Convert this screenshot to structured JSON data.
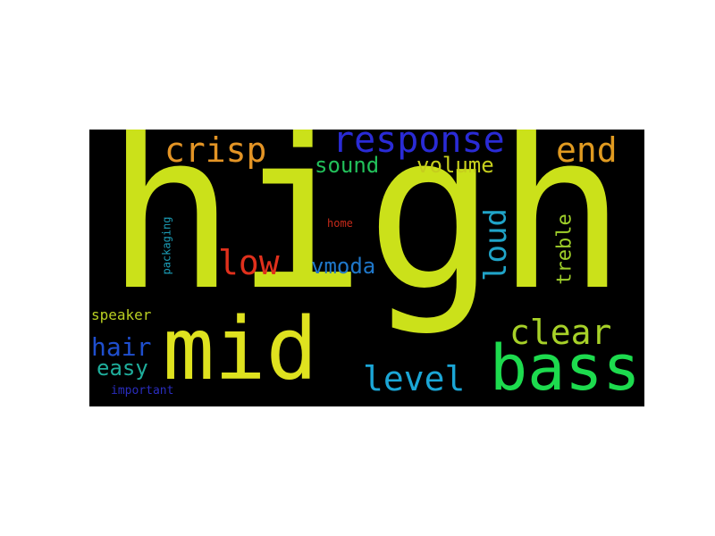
{
  "words": {
    "high": {
      "text": "high",
      "color": "#cbe11a"
    },
    "mid": {
      "text": "mid",
      "color": "#dfe21f"
    },
    "bass": {
      "text": "bass",
      "color": "#1ddb4e"
    },
    "response": {
      "text": "response",
      "color": "#2a2bd6"
    },
    "crisp": {
      "text": "crisp",
      "color": "#e39425"
    },
    "end": {
      "text": "end",
      "color": "#e09a20"
    },
    "sound": {
      "text": "sound",
      "color": "#22c05a"
    },
    "volume": {
      "text": "volume",
      "color": "#c6ce1d"
    },
    "low": {
      "text": "low",
      "color": "#e0301c"
    },
    "vmoda": {
      "text": "vmoda",
      "color": "#1f77c9"
    },
    "loud": {
      "text": "loud",
      "color": "#20a4c8"
    },
    "treble": {
      "text": "treble",
      "color": "#9fcf2a"
    },
    "clear": {
      "text": "clear",
      "color": "#a7d128"
    },
    "level": {
      "text": "level",
      "color": "#1ba6d6"
    },
    "hair": {
      "text": "hair",
      "color": "#1f4fcf"
    },
    "easy": {
      "text": "easy",
      "color": "#1fae9c"
    },
    "speaker": {
      "text": "speaker",
      "color": "#b9cf22"
    },
    "important": {
      "text": "important",
      "color": "#2a2dbf"
    },
    "packaging": {
      "text": "packaging",
      "color": "#1c9eb8"
    },
    "home": {
      "text": "home",
      "color": "#c62a1a"
    }
  }
}
